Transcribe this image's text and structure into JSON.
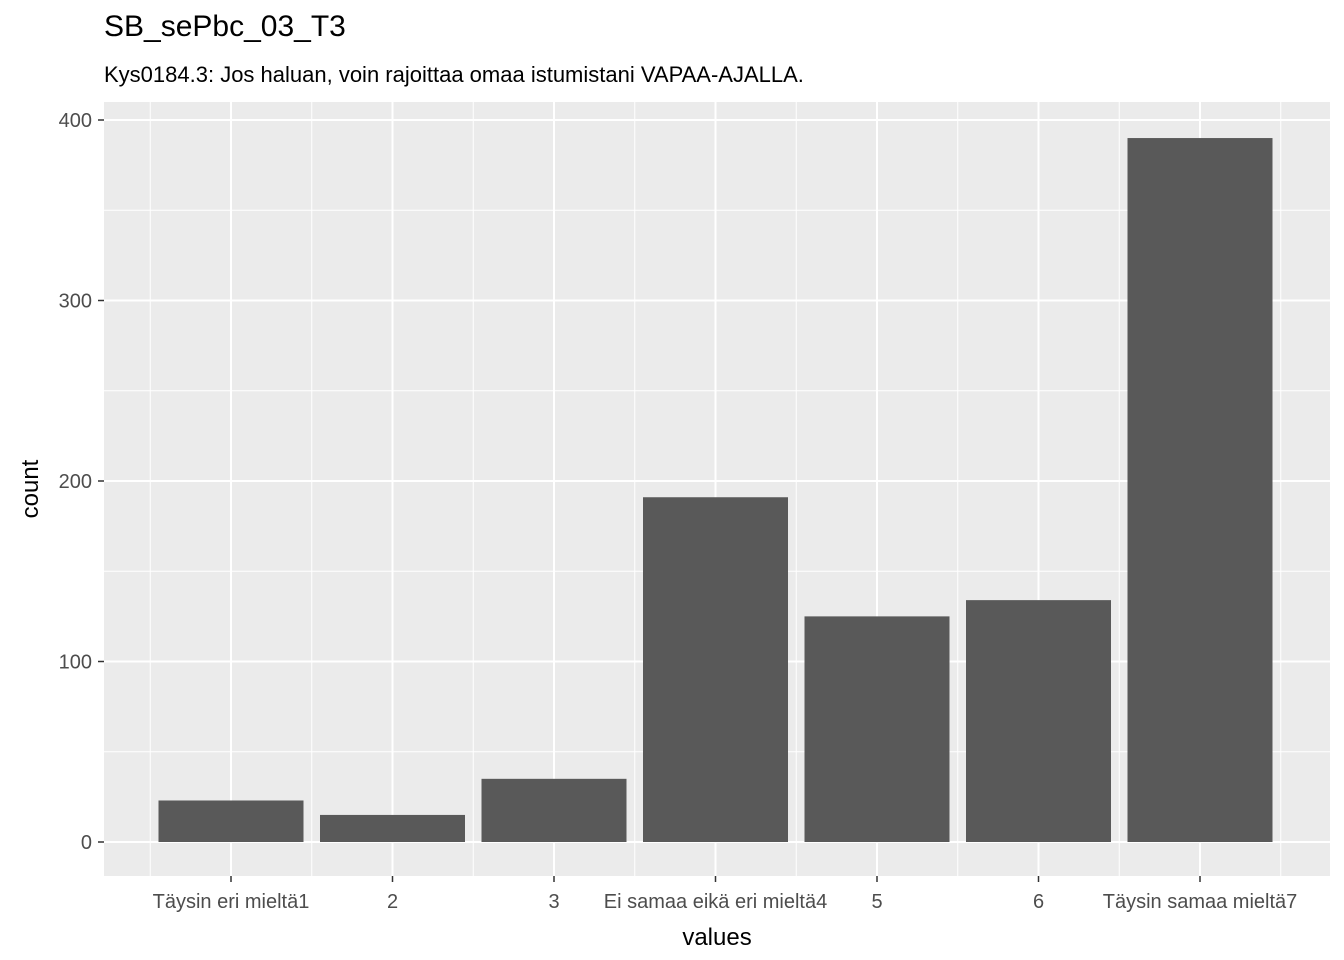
{
  "chart_data": {
    "type": "bar",
    "title": "SB_sePbc_03_T3",
    "subtitle": "Kys0184.3: Jos haluan, voin rajoittaa omaa istumistani VAPAA-AJALLA.",
    "xlabel": "values",
    "ylabel": "count",
    "categories": [
      "Täysin eri mieltä1",
      "2",
      "3",
      "Ei samaa eikä eri mieltä4",
      "5",
      "6",
      "Täysin samaa mieltä7"
    ],
    "values": [
      23,
      15,
      35,
      191,
      125,
      134,
      390
    ],
    "ylim": [
      0,
      420
    ],
    "yticks": [
      0,
      100,
      200,
      300,
      400
    ],
    "grid": true,
    "colors": {
      "bar": "#595959",
      "panel": "#ebebeb",
      "grid": "#ffffff"
    }
  }
}
